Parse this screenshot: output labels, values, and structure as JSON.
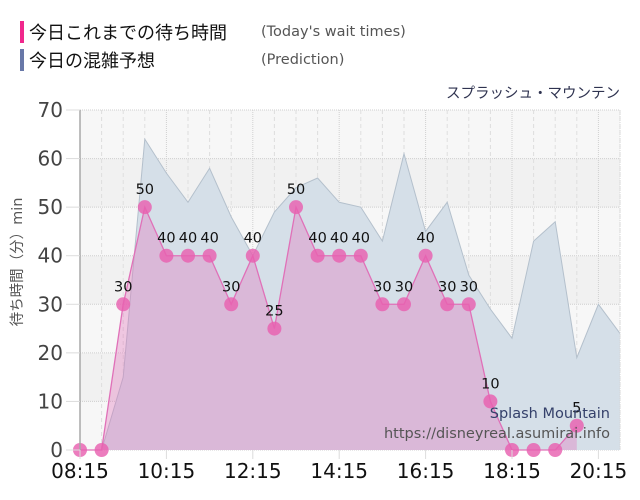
{
  "legend": {
    "items": [
      {
        "label": "今日これまでの待ち時間",
        "sublabel": "(Today's wait times)",
        "color": "#f0288c"
      },
      {
        "label": "今日の混雑予想",
        "sublabel": "(Prediction)",
        "color": "#6878a8"
      }
    ]
  },
  "chart_title": "スプラッシュ・マウンテン",
  "watermark": {
    "name": "Splash Mountain",
    "url": "https://disneyreal.asumirai.info"
  },
  "colors": {
    "wait_line": "#e070b8",
    "wait_marker": "rgba(232,96,176,0.82)",
    "wait_fill": "rgba(226,120,189,0.38)",
    "prediction_fill": "#d5dfe8",
    "prediction_stroke": "#b4c0cc",
    "band_light": "#f7f7f7",
    "band_dark": "#f1f1f1"
  },
  "chart_data": {
    "type": "area",
    "title": "スプラッシュ・マウンテン",
    "xlabel": "",
    "ylabel": "待ち時間（分）min",
    "ylim": [
      0,
      70
    ],
    "xlim": [
      "08:15",
      "20:45"
    ],
    "yticks": [
      0,
      10,
      20,
      30,
      40,
      50,
      60,
      70
    ],
    "xticks": [
      "08:15",
      "10:15",
      "12:15",
      "14:15",
      "16:15",
      "18:15",
      "20:15"
    ],
    "grid": true,
    "legend_position": "top-left",
    "series": [
      {
        "name": "今日これまでの待ち時間 (Today's wait times)",
        "type": "line+area",
        "color": "#e070b8",
        "data_labels": true,
        "x": [
          "08:15",
          "08:45",
          "09:15",
          "09:45",
          "10:15",
          "10:45",
          "11:15",
          "11:45",
          "12:15",
          "12:45",
          "13:15",
          "13:45",
          "14:15",
          "14:45",
          "15:15",
          "15:45",
          "16:15",
          "16:45",
          "17:15",
          "17:45",
          "18:15",
          "18:45",
          "19:15",
          "19:45"
        ],
        "values": [
          0,
          0,
          30,
          50,
          40,
          40,
          40,
          30,
          40,
          25,
          50,
          40,
          40,
          40,
          30,
          30,
          40,
          30,
          30,
          10,
          0,
          0,
          0,
          5
        ]
      },
      {
        "name": "今日の混雑予想 (Prediction)",
        "type": "area",
        "color": "#d5dfe8",
        "data_labels": false,
        "x": [
          "08:45",
          "09:15",
          "09:45",
          "10:15",
          "10:45",
          "11:15",
          "11:45",
          "12:15",
          "12:45",
          "13:15",
          "13:45",
          "14:15",
          "14:45",
          "15:15",
          "15:45",
          "16:15",
          "16:45",
          "17:15",
          "17:45",
          "18:15",
          "18:45",
          "19:15",
          "19:45",
          "20:15",
          "20:45"
        ],
        "values": [
          0,
          15,
          64,
          57,
          51,
          58,
          48,
          40,
          49,
          54,
          56,
          51,
          50,
          43,
          61,
          45,
          51,
          36,
          29,
          23,
          43,
          47,
          19,
          30,
          24
        ]
      }
    ]
  }
}
